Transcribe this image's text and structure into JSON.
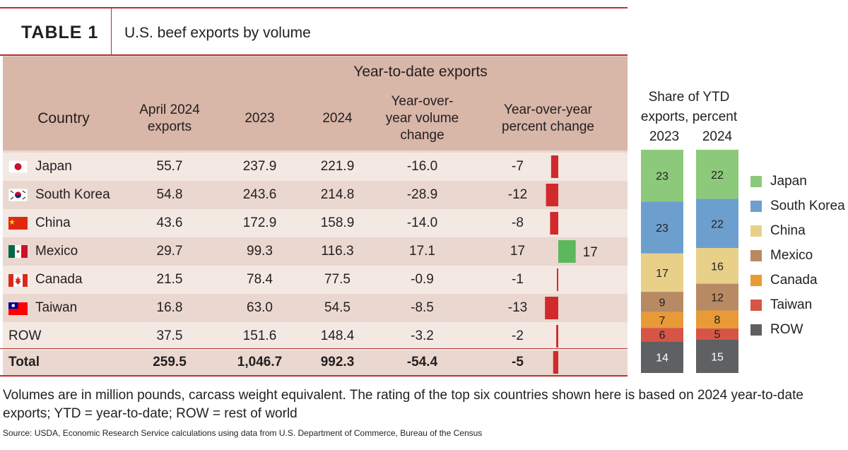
{
  "header": {
    "table_label": "TABLE 1",
    "title": "U.S. beef exports by volume"
  },
  "columns": {
    "country": "Country",
    "april": [
      "April 2024",
      "exports"
    ],
    "ytd_group": "Year-to-date exports",
    "y2023": "2023",
    "y2024": "2024",
    "volume_change": [
      "Year-over-",
      "year volume",
      "change"
    ],
    "percent_change": [
      "Year-over-year",
      "percent change"
    ]
  },
  "rows": [
    {
      "country": "Japan",
      "flag": "japan-flag",
      "april": "55.7",
      "y2023": "237.9",
      "y2024": "221.9",
      "vol_change": "-16.0",
      "pct_change": "-7",
      "pct_value": -7
    },
    {
      "country": "South Korea",
      "flag": "south-korea-flag",
      "april": "54.8",
      "y2023": "243.6",
      "y2024": "214.8",
      "vol_change": "-28.9",
      "pct_change": "-12",
      "pct_value": -12
    },
    {
      "country": "China",
      "flag": "china-flag",
      "april": "43.6",
      "y2023": "172.9",
      "y2024": "158.9",
      "vol_change": "-14.0",
      "pct_change": "-8",
      "pct_value": -8
    },
    {
      "country": "Mexico",
      "flag": "mexico-flag",
      "april": "29.7",
      "y2023": "99.3",
      "y2024": "116.3",
      "vol_change": "17.1",
      "pct_change": "17",
      "pct_value": 17
    },
    {
      "country": "Canada",
      "flag": "canada-flag",
      "april": "21.5",
      "y2023": "78.4",
      "y2024": "77.5",
      "vol_change": "-0.9",
      "pct_change": "-1",
      "pct_value": -1
    },
    {
      "country": "Taiwan",
      "flag": "taiwan-flag",
      "april": "16.8",
      "y2023": "63.0",
      "y2024": "54.5",
      "vol_change": "-8.5",
      "pct_change": "-13",
      "pct_value": -13
    },
    {
      "country": "ROW",
      "flag": "",
      "april": "37.5",
      "y2023": "151.6",
      "y2024": "148.4",
      "vol_change": "-3.2",
      "pct_change": "-2",
      "pct_value": -2
    },
    {
      "country": "Total",
      "flag": "",
      "april": "259.5",
      "y2023": "1,046.7",
      "y2024": "992.3",
      "vol_change": "-54.4",
      "pct_change": "-5",
      "pct_value": -5
    }
  ],
  "share": {
    "title": [
      "Share of YTD",
      "exports, percent"
    ],
    "years": [
      "2023",
      "2024"
    ]
  },
  "chart_data": [
    {
      "type": "bar",
      "title": "Year-over-year percent change",
      "categories": [
        "Japan",
        "South Korea",
        "China",
        "Mexico",
        "Canada",
        "Taiwan",
        "ROW",
        "Total"
      ],
      "values": [
        -7,
        -12,
        -8,
        17,
        -1,
        -13,
        -2,
        -5
      ],
      "colors": {
        "negative": "#d12a2d",
        "positive": "#5cb85c"
      }
    },
    {
      "type": "bar",
      "title": "Share of YTD exports, percent",
      "stacked": true,
      "categories": [
        "2023",
        "2024"
      ],
      "series": [
        {
          "name": "Japan",
          "values": [
            23,
            22
          ],
          "color": "#8dc97a"
        },
        {
          "name": "South Korea",
          "values": [
            23,
            22
          ],
          "color": "#6d9fce"
        },
        {
          "name": "China",
          "values": [
            17,
            16
          ],
          "color": "#e8d089"
        },
        {
          "name": "Mexico",
          "values": [
            9,
            12
          ],
          "color": "#b88a63"
        },
        {
          "name": "Canada",
          "values": [
            7,
            8
          ],
          "color": "#e89a36"
        },
        {
          "name": "Taiwan",
          "values": [
            6,
            5
          ],
          "color": "#d65545"
        },
        {
          "name": "ROW",
          "values": [
            14,
            15
          ],
          "color": "#5e6062"
        }
      ],
      "legend": "right"
    }
  ],
  "notes": "Volumes are in million pounds, carcass weight equivalent. The rating of the top six countries shown here is based on 2024 year-to-date exports; YTD = year-to-date; ROW = rest of world",
  "source": "Source: USDA, Economic Research Service calculations using data from U.S. Department of Commerce, Bureau of the Census"
}
